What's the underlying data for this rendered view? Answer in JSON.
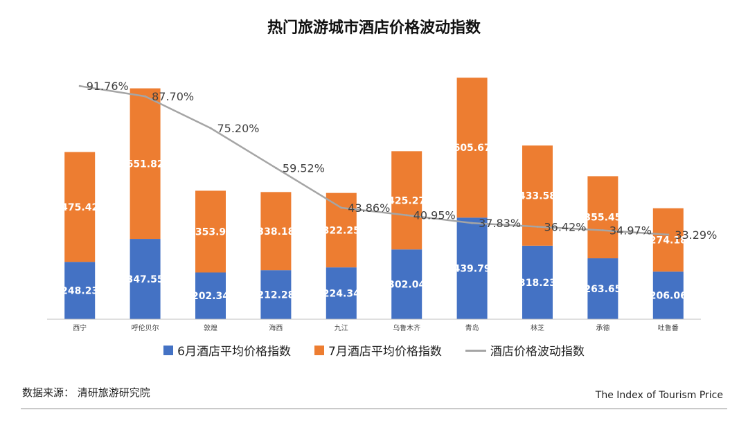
{
  "chart_data": {
    "type": "bar",
    "title": "热门旅游城市酒店价格波动指数",
    "categories": [
      "西宁",
      "呼伦贝尔",
      "敦煌",
      "海西",
      "九江",
      "乌鲁木齐",
      "青岛",
      "林芝",
      "承德",
      "吐鲁番"
    ],
    "series": [
      {
        "name": "6月酒店平均价格指数",
        "type": "stacked-bar",
        "color": "#4472C4",
        "values": [
          248.23,
          347.55,
          202.34,
          212.28,
          224.34,
          302.04,
          439.79,
          318.23,
          263.65,
          206.06
        ],
        "labels": [
          "248.23",
          "347.55",
          "202.34",
          "212.28",
          "224.34",
          "302.04",
          "439.79",
          "318.23",
          "263.65",
          "206.06"
        ]
      },
      {
        "name": "7月酒店平均价格指数",
        "type": "stacked-bar",
        "color": "#ED7D31",
        "values": [
          475.42,
          651.82,
          353.9,
          338.18,
          322.25,
          425.27,
          605.67,
          433.58,
          355.45,
          274.18
        ],
        "labels": [
          "475.42",
          "651.82",
          "353.9",
          "338.18",
          "322.25",
          "425.27",
          "605.67",
          "433.58",
          "355.45",
          "274.18"
        ]
      },
      {
        "name": "酒店价格波动指数",
        "type": "line",
        "color": "#A5A5A5",
        "axis": "secondary",
        "values": [
          91.76,
          87.7,
          75.2,
          59.52,
          43.86,
          40.95,
          37.83,
          36.42,
          34.97,
          33.29
        ],
        "labels": [
          "91.76%",
          "87.70%",
          "75.20%",
          "59.52%",
          "43.86%",
          "40.95%",
          "37.83%",
          "36.42%",
          "34.97%",
          "33.29%"
        ]
      }
    ],
    "primary_ylim": [
      0,
      1100
    ],
    "secondary_ylim": [
      0,
      100
    ],
    "legend_position": "bottom",
    "grid": false
  },
  "footer": {
    "source": "数据来源：  清研旅游研究院",
    "brand": "The Index of Tourism Price"
  }
}
